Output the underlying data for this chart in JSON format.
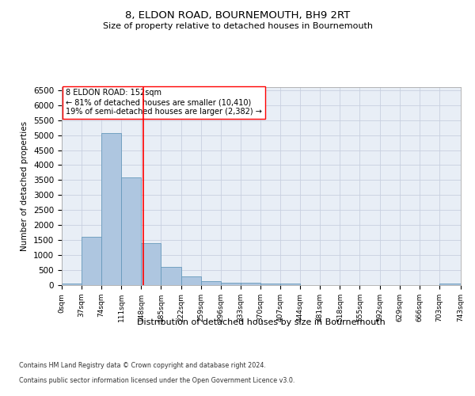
{
  "title": "8, ELDON ROAD, BOURNEMOUTH, BH9 2RT",
  "subtitle": "Size of property relative to detached houses in Bournemouth",
  "xlabel": "Distribution of detached houses by size in Bournemouth",
  "ylabel": "Number of detached properties",
  "bar_color": "#aec6e0",
  "bar_edge_color": "#6699bb",
  "vline_x": 152,
  "vline_color": "red",
  "annotation_lines": [
    "8 ELDON ROAD: 152sqm",
    "← 81% of detached houses are smaller (10,410)",
    "19% of semi-detached houses are larger (2,382) →"
  ],
  "bin_edges": [
    0,
    37,
    74,
    111,
    148,
    185,
    222,
    259,
    296,
    333,
    370,
    407,
    444,
    481,
    518,
    555,
    592,
    629,
    666,
    703,
    743
  ],
  "bar_heights": [
    60,
    1620,
    5060,
    3580,
    1400,
    620,
    290,
    140,
    90,
    70,
    50,
    50,
    0,
    0,
    0,
    0,
    0,
    0,
    0,
    50
  ],
  "ylim": [
    0,
    6600
  ],
  "yticks": [
    0,
    500,
    1000,
    1500,
    2000,
    2500,
    3000,
    3500,
    4000,
    4500,
    5000,
    5500,
    6000,
    6500
  ],
  "footer_lines": [
    "Contains HM Land Registry data © Crown copyright and database right 2024.",
    "Contains public sector information licensed under the Open Government Licence v3.0."
  ],
  "background_color": "#ffffff",
  "plot_bg_color": "#e8eef6",
  "grid_color": "#c8d0e0"
}
